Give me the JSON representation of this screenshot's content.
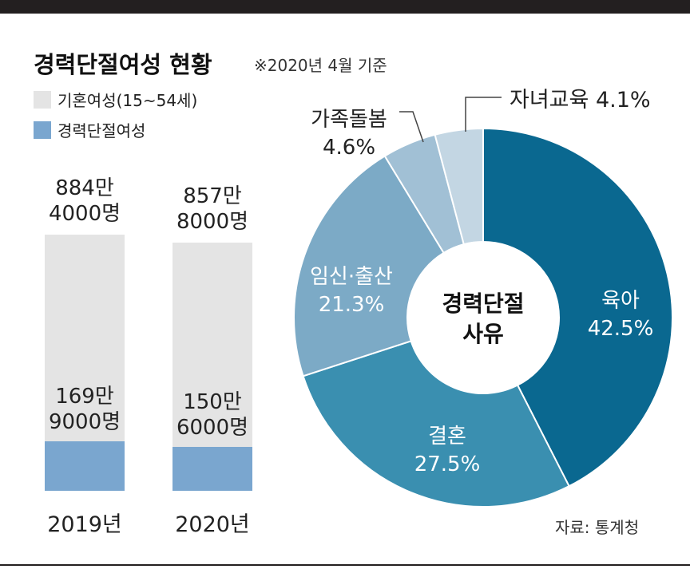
{
  "title": "경력단절여성 현황",
  "subtitle": "※2020년 4월 기준",
  "source": "자료: 통계청",
  "colors": {
    "married": "#e4e4e4",
    "career_break": "#7aa6cf",
    "slices": [
      "#0a6890",
      "#3a8fb0",
      "#7caac6",
      "#a1c0d5",
      "#c3d6e3"
    ],
    "frame": "#231f20"
  },
  "chart_data": [
    {
      "type": "bar",
      "legend": [
        {
          "name": "기혼여성(15~54세)",
          "color": "#e4e4e4"
        },
        {
          "name": "경력단절여성",
          "color": "#7aa6cf"
        }
      ],
      "categories": [
        "2019년",
        "2020년"
      ],
      "series": [
        {
          "name": "기혼여성(15~54세)",
          "values": [
            8844000,
            8578000
          ],
          "labels": [
            [
              "884만",
              "4000명"
            ],
            [
              "857만",
              "8000명"
            ]
          ]
        },
        {
          "name": "경력단절여성",
          "values": [
            1699000,
            1506000
          ],
          "labels": [
            [
              "169만",
              "9000명"
            ],
            [
              "150만",
              "6000명"
            ]
          ]
        }
      ]
    },
    {
      "type": "pie",
      "center_label": [
        "경력단절",
        "사유"
      ],
      "slices": [
        {
          "label": "육아",
          "value": 42.5,
          "text": "42.5%"
        },
        {
          "label": "결혼",
          "value": 27.5,
          "text": "27.5%"
        },
        {
          "label": "임신·출산",
          "value": 21.3,
          "text": "21.3%"
        },
        {
          "label": "가족돌봄",
          "value": 4.6,
          "text": "4.6%"
        },
        {
          "label": "자녀교육",
          "value": 4.1,
          "text": "4.1%"
        }
      ]
    }
  ]
}
